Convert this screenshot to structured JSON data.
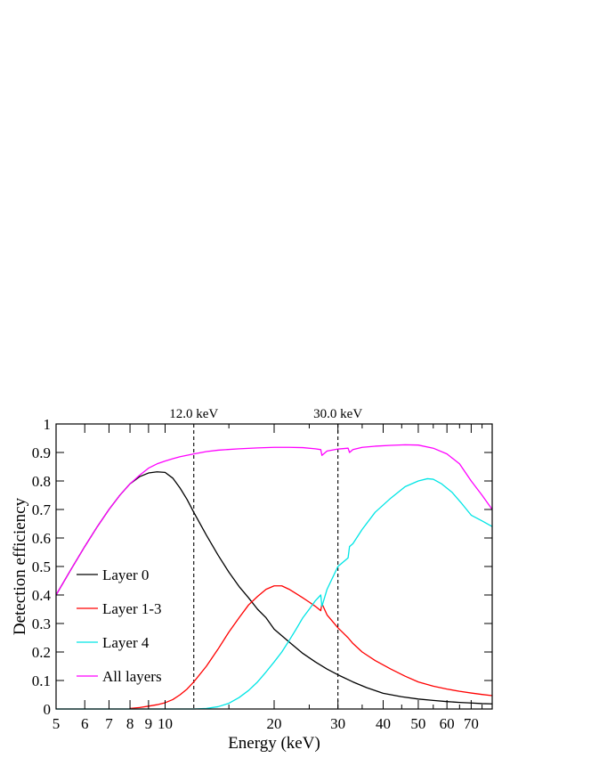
{
  "chart_data": {
    "type": "line",
    "xlabel": "Energy (keV)",
    "ylabel": "Detection efficiency",
    "x_scale": "log",
    "xlim": [
      5,
      80
    ],
    "ylim": [
      0,
      1
    ],
    "x_ticks": [
      5,
      6,
      7,
      8,
      9,
      10,
      20,
      30,
      40,
      50,
      60,
      70
    ],
    "y_ticks": [
      0,
      0.1,
      0.2,
      0.3,
      0.4,
      0.5,
      0.6,
      0.7,
      0.8,
      0.9,
      1
    ],
    "grid": false,
    "legend_position": "lower-left",
    "vertical_markers": [
      {
        "x": 12.0,
        "label": "12.0 keV"
      },
      {
        "x": 30.0,
        "label": "30.0 keV"
      }
    ],
    "series": [
      {
        "name": "Layer 0",
        "color": "#000000",
        "x": [
          5,
          5.5,
          6,
          6.5,
          7,
          7.5,
          8,
          8.5,
          9,
          9.5,
          10,
          10.5,
          11,
          11.5,
          12,
          13,
          14,
          15,
          16,
          17,
          18,
          19,
          20,
          22,
          24,
          26,
          28,
          30,
          33,
          36,
          40,
          45,
          50,
          55,
          60,
          65,
          70,
          75,
          80
        ],
        "y": [
          0.4,
          0.49,
          0.57,
          0.64,
          0.7,
          0.75,
          0.79,
          0.815,
          0.828,
          0.832,
          0.83,
          0.81,
          0.775,
          0.735,
          0.69,
          0.61,
          0.54,
          0.48,
          0.43,
          0.39,
          0.35,
          0.32,
          0.28,
          0.235,
          0.195,
          0.165,
          0.14,
          0.12,
          0.095,
          0.075,
          0.055,
          0.043,
          0.035,
          0.03,
          0.026,
          0.023,
          0.021,
          0.019,
          0.018
        ]
      },
      {
        "name": "Layer 1-3",
        "color": "#ff0000",
        "x": [
          8,
          8.5,
          9,
          9.5,
          10,
          10.5,
          11,
          11.5,
          12,
          13,
          14,
          15,
          16,
          17,
          18,
          19,
          20,
          21,
          22,
          23,
          24,
          25,
          26,
          26.9,
          27.1,
          28,
          30,
          32,
          33,
          35,
          38,
          42,
          46,
          50,
          55,
          60,
          65,
          70,
          75,
          80
        ],
        "y": [
          0.002,
          0.005,
          0.01,
          0.015,
          0.022,
          0.033,
          0.05,
          0.07,
          0.095,
          0.15,
          0.21,
          0.27,
          0.32,
          0.365,
          0.395,
          0.42,
          0.432,
          0.432,
          0.42,
          0.405,
          0.39,
          0.375,
          0.36,
          0.345,
          0.37,
          0.33,
          0.285,
          0.25,
          0.23,
          0.2,
          0.17,
          0.14,
          0.115,
          0.095,
          0.08,
          0.07,
          0.062,
          0.056,
          0.051,
          0.047
        ]
      },
      {
        "name": "Layer 4",
        "color": "#00e5e5",
        "x": [
          5,
          12,
          13,
          14,
          15,
          16,
          17,
          18,
          19,
          20,
          21,
          22,
          23,
          24,
          25,
          26,
          26.9,
          27.1,
          28,
          30,
          32,
          32.3,
          33,
          35,
          38,
          42,
          46,
          50,
          53,
          55,
          58,
          62,
          66,
          70,
          75,
          80
        ],
        "y": [
          0,
          0,
          0.002,
          0.008,
          0.02,
          0.04,
          0.065,
          0.095,
          0.13,
          0.165,
          0.2,
          0.24,
          0.28,
          0.32,
          0.35,
          0.38,
          0.4,
          0.36,
          0.42,
          0.5,
          0.53,
          0.57,
          0.58,
          0.63,
          0.69,
          0.74,
          0.78,
          0.8,
          0.808,
          0.806,
          0.79,
          0.76,
          0.72,
          0.68,
          0.66,
          0.64
        ]
      },
      {
        "name": "All layers",
        "color": "#ff00ff",
        "x": [
          5,
          5.5,
          6,
          6.5,
          7,
          7.5,
          8,
          8.5,
          9,
          9.5,
          10,
          10.5,
          11,
          12,
          13,
          14,
          16,
          18,
          20,
          22,
          24,
          26,
          26.9,
          27.1,
          28,
          30,
          32,
          32.3,
          33,
          35,
          38,
          42,
          46,
          50,
          55,
          60,
          65,
          70,
          75,
          80
        ],
        "y": [
          0.4,
          0.49,
          0.57,
          0.64,
          0.7,
          0.75,
          0.79,
          0.82,
          0.845,
          0.86,
          0.87,
          0.878,
          0.885,
          0.895,
          0.903,
          0.908,
          0.913,
          0.916,
          0.918,
          0.918,
          0.917,
          0.913,
          0.91,
          0.89,
          0.905,
          0.912,
          0.915,
          0.9,
          0.91,
          0.918,
          0.922,
          0.925,
          0.927,
          0.926,
          0.915,
          0.895,
          0.86,
          0.8,
          0.75,
          0.7
        ]
      }
    ]
  }
}
